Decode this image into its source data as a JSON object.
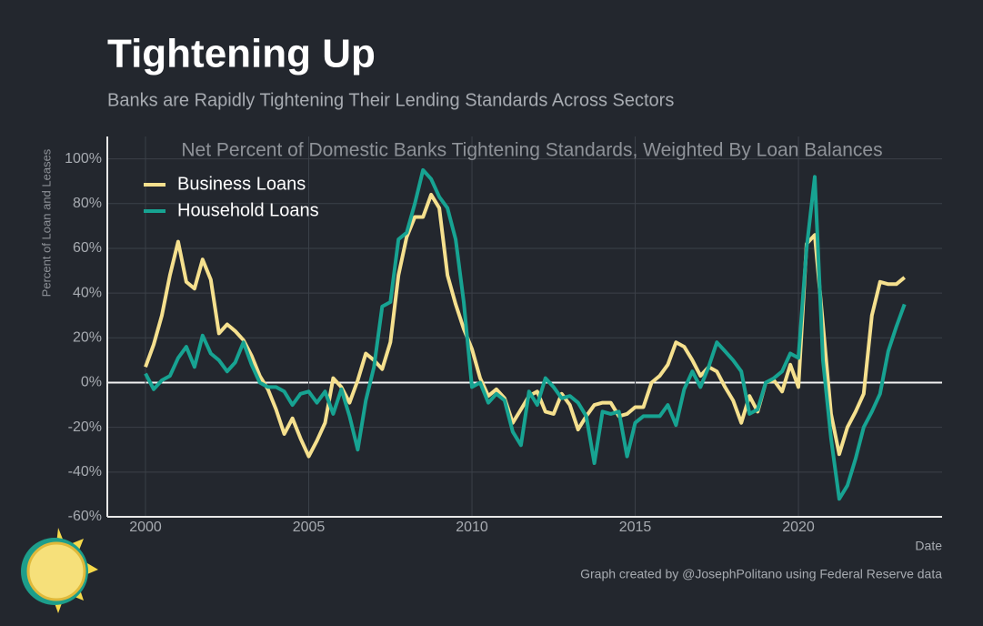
{
  "chart_data": {
    "type": "line",
    "title": "Tightening Up",
    "subtitle": "Banks are Rapidly Tightening Their Lending Standards Across Sectors",
    "plot_title": "Net Percent of Domestic Banks Tightening Standards, Weighted By Loan Balances",
    "y_label": "Percent of Loan and Leases",
    "x_label": "Date",
    "credit": "Graph created by @JosephPolitano using Federal Reserve data",
    "xlim": [
      1998.83,
      2024.4
    ],
    "ylim": [
      -60,
      110
    ],
    "xticks": [
      2000,
      2005,
      2010,
      2015,
      2020
    ],
    "yticks": [
      {
        "value": -60,
        "label": "-60%"
      },
      {
        "value": -40,
        "label": "-40%"
      },
      {
        "value": -20,
        "label": "-20%"
      },
      {
        "value": 0,
        "label": "0%"
      },
      {
        "value": 20,
        "label": "20%"
      },
      {
        "value": 40,
        "label": "40%"
      },
      {
        "value": 60,
        "label": "60%"
      },
      {
        "value": 80,
        "label": "80%"
      },
      {
        "value": 100,
        "label": "100%"
      }
    ],
    "grid": true,
    "legend": "upper left",
    "x": [
      2000,
      2000.25,
      2000.5,
      2000.75,
      2001,
      2001.25,
      2001.5,
      2001.75,
      2002,
      2002.25,
      2002.5,
      2002.75,
      2003,
      2003.25,
      2003.5,
      2003.75,
      2004,
      2004.25,
      2004.5,
      2004.75,
      2005,
      2005.25,
      2005.5,
      2005.75,
      2006,
      2006.25,
      2006.5,
      2006.75,
      2007,
      2007.25,
      2007.5,
      2007.75,
      2008,
      2008.25,
      2008.5,
      2008.75,
      2009,
      2009.25,
      2009.5,
      2009.75,
      2010,
      2010.25,
      2010.5,
      2010.75,
      2011,
      2011.25,
      2011.5,
      2011.75,
      2012,
      2012.25,
      2012.5,
      2012.75,
      2013,
      2013.25,
      2013.5,
      2013.75,
      2014,
      2014.25,
      2014.5,
      2014.75,
      2015,
      2015.25,
      2015.5,
      2015.75,
      2016,
      2016.25,
      2016.5,
      2016.75,
      2017,
      2017.25,
      2017.5,
      2017.75,
      2018,
      2018.25,
      2018.5,
      2018.75,
      2019,
      2019.25,
      2019.5,
      2019.75,
      2020,
      2020.25,
      2020.5,
      2020.75,
      2021,
      2021.25,
      2021.5,
      2021.75,
      2022,
      2022.25,
      2022.5,
      2022.75,
      2023,
      2023.25
    ],
    "series": [
      {
        "name": "Business Loans",
        "color": "#f5e08e",
        "values": [
          7,
          17,
          30,
          48,
          63,
          45,
          42,
          55,
          46,
          22,
          26,
          23,
          19,
          12,
          3,
          -3,
          -12,
          -23,
          -16,
          -25,
          -33,
          -26,
          -18,
          2,
          -2,
          -9,
          1,
          13,
          10,
          6,
          18,
          48,
          65,
          74,
          74,
          84,
          78,
          48,
          35,
          24,
          15,
          2,
          -6,
          -3,
          -7,
          -18,
          -12,
          -6,
          -4,
          -13,
          -14,
          -5,
          -10,
          -21,
          -15,
          -10,
          -9,
          -9,
          -15,
          -14,
          -11,
          -11,
          0,
          3,
          8,
          18,
          16,
          10,
          3,
          7,
          5,
          -2,
          -8,
          -18,
          -6,
          -13,
          0,
          1,
          -4,
          8,
          -2,
          62,
          66,
          26,
          -14,
          -32,
          -20,
          -13,
          -5,
          30,
          45,
          44,
          44,
          47
        ]
      },
      {
        "name": "Household Loans",
        "color": "#17a392",
        "values": [
          4,
          -3,
          1,
          3,
          11,
          16,
          7,
          21,
          13,
          10,
          5,
          9,
          18,
          8,
          0,
          -2,
          -2,
          -4,
          -10,
          -5,
          -4,
          -9,
          -4,
          -14,
          -3,
          -15,
          -30,
          -8,
          7,
          34,
          36,
          64,
          67,
          80,
          95,
          91,
          83,
          78,
          64,
          36,
          -2,
          0,
          -9,
          -5,
          -8,
          -22,
          -28,
          -4,
          -10,
          2,
          -2,
          -7,
          -6,
          -9,
          -15,
          -36,
          -13,
          -14,
          -13,
          -33,
          -18,
          -15,
          -15,
          -15,
          -10,
          -19,
          -3,
          5,
          -2,
          7,
          18,
          14,
          10,
          5,
          -14,
          -12,
          0,
          2,
          5,
          13,
          11,
          60,
          92,
          10,
          -25,
          -52,
          -46,
          -34,
          -20,
          -13,
          -5,
          14,
          25,
          35
        ]
      }
    ]
  }
}
